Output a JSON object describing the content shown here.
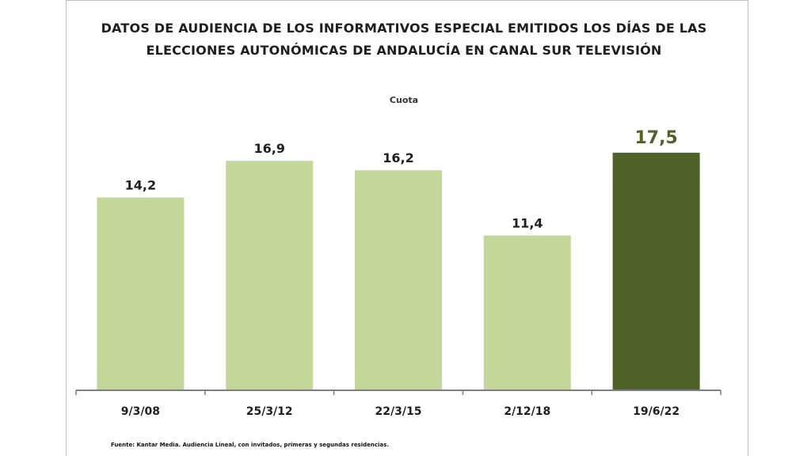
{
  "title_line1": "DATOS DE AUDIENCIA DE LOS INFORMATIVOS ESPECIAL EMITIDOS LOS DÍAS DE LAS",
  "title_line2": "ELECCIONES AUTONÓMICAS DE ANDALUCÍA EN CANAL SUR TELEVISIÓN",
  "source": "Fuente: Kantar Media. Audiencia Lineal, con invitados, primeras y segundas residencias.",
  "colors": {
    "bar_default": "#c4d79b",
    "bar_highlight": "#4f6228",
    "label_default": "#1f1f1f",
    "label_highlight": "#4f6228",
    "axis": "#7f7f7f"
  },
  "chart_data": {
    "type": "bar",
    "title": "DATOS DE AUDIENCIA DE LOS INFORMATIVOS ESPECIAL EMITIDOS LOS DÍAS DE LAS ELECCIONES AUTONÓMICAS DE ANDALUCÍA EN CANAL SUR TELEVISIÓN",
    "subtitle": "Cuota",
    "categories": [
      "9/3/08",
      "25/3/12",
      "22/3/15",
      "2/12/18",
      "19/6/22"
    ],
    "values": [
      14.2,
      16.9,
      16.2,
      11.4,
      17.5
    ],
    "data_labels": [
      "14,2",
      "16,9",
      "16,2",
      "11,4",
      "17,5"
    ],
    "highlight_index": 4,
    "xlabel": "",
    "ylabel": "",
    "ylim": [
      0,
      20
    ],
    "grid": false,
    "legend": "none"
  }
}
